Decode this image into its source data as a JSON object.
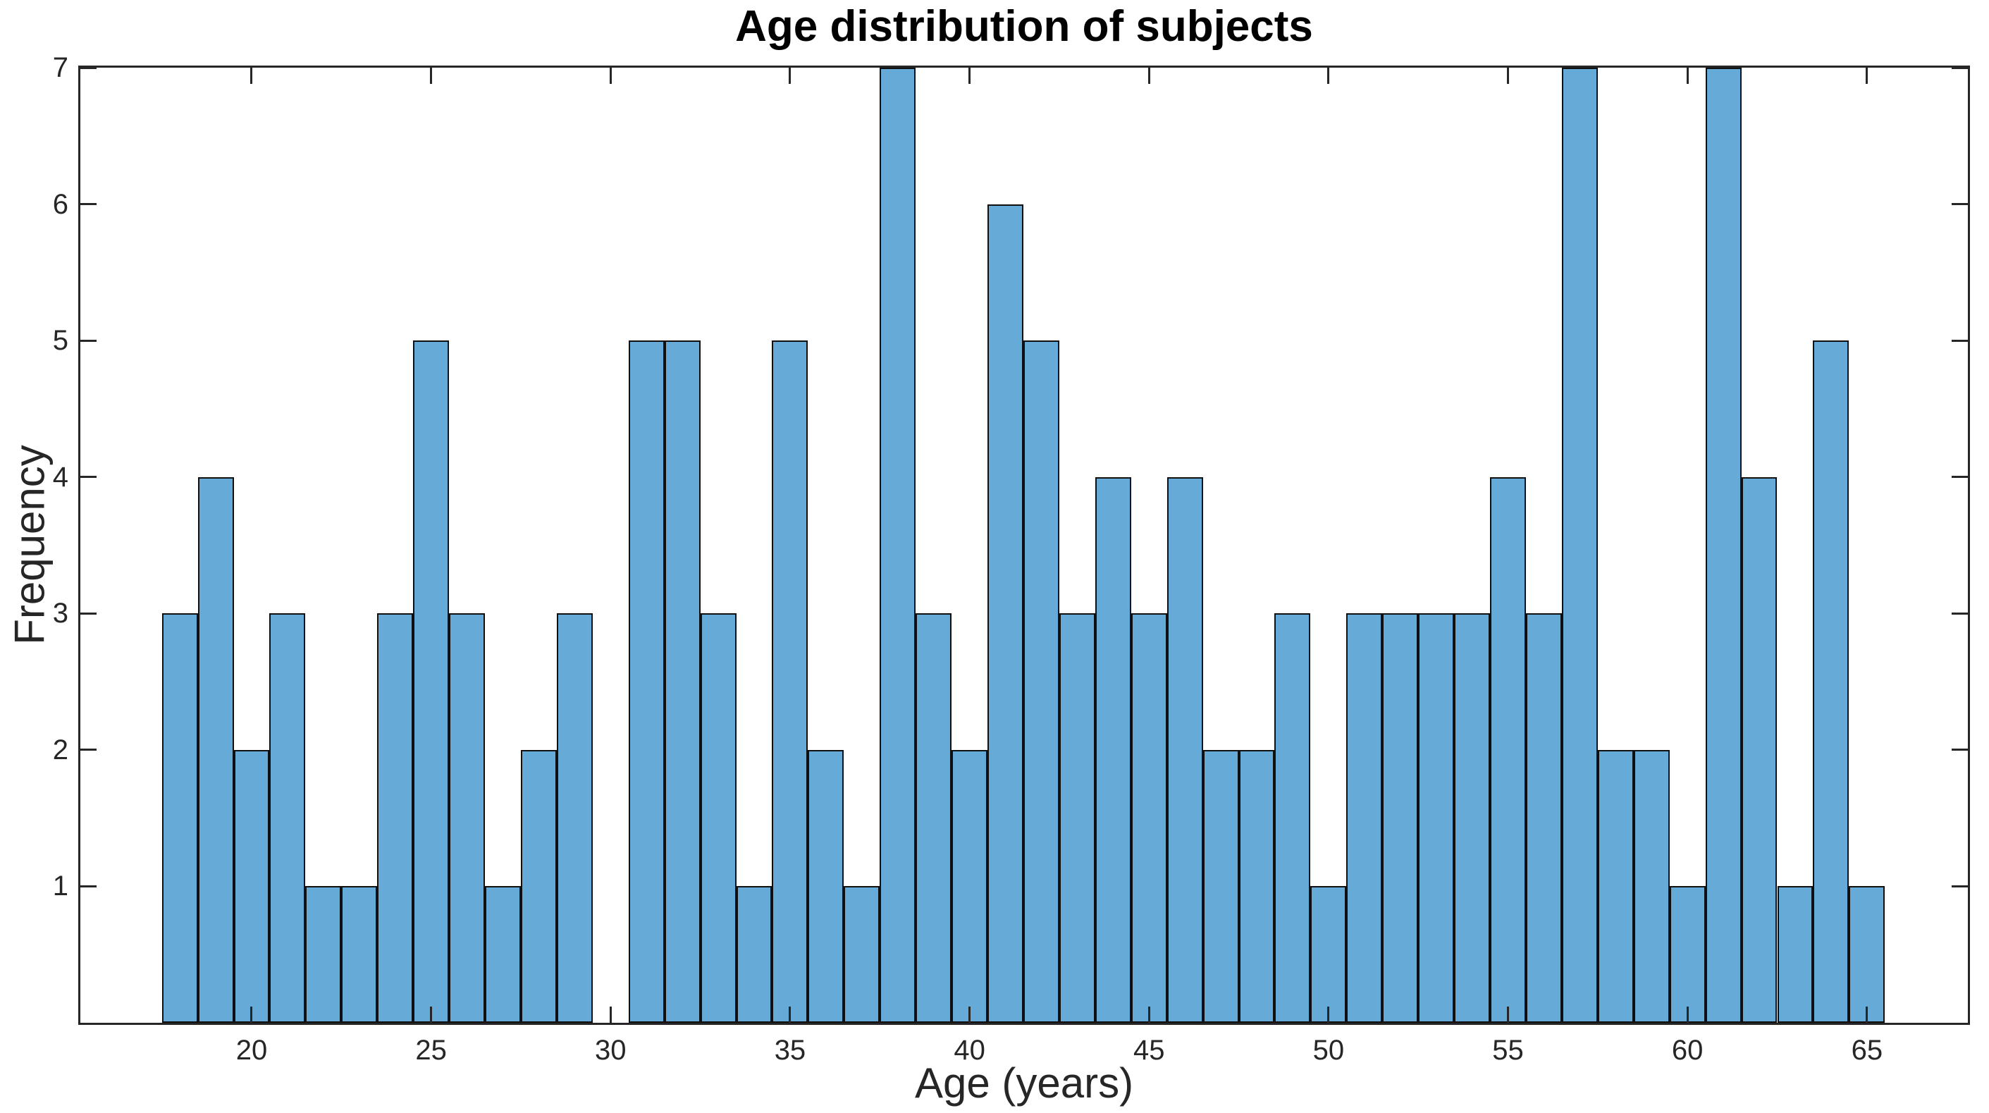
{
  "chart_data": {
    "type": "bar",
    "subtype": "histogram",
    "title": "Age distribution of subjects",
    "xlabel": "Age (years)",
    "ylabel": "Frequency",
    "bin_width": 1,
    "bin_centers": [
      18,
      19,
      20,
      21,
      22,
      23,
      24,
      25,
      26,
      27,
      28,
      29,
      30,
      31,
      32,
      33,
      34,
      35,
      36,
      37,
      38,
      39,
      40,
      41,
      42,
      43,
      44,
      45,
      46,
      47,
      48,
      49,
      50,
      51,
      52,
      53,
      54,
      55,
      56,
      57,
      58,
      59,
      60,
      61,
      62,
      63,
      64,
      65
    ],
    "counts": [
      3,
      4,
      2,
      3,
      1,
      1,
      3,
      5,
      3,
      1,
      2,
      3,
      0,
      5,
      5,
      3,
      1,
      5,
      2,
      1,
      7,
      3,
      2,
      6,
      5,
      3,
      4,
      3,
      4,
      2,
      2,
      3,
      1,
      3,
      3,
      3,
      3,
      4,
      3,
      7,
      2,
      2,
      1,
      7,
      4,
      1,
      5,
      1
    ],
    "x_ticks": [
      20,
      25,
      30,
      35,
      40,
      45,
      50,
      55,
      60,
      65
    ],
    "y_ticks": [
      1,
      2,
      3,
      4,
      5,
      6,
      7
    ],
    "xlim": [
      15.17,
      67.87
    ],
    "ylim": [
      0,
      7
    ],
    "grid": false,
    "legend": null,
    "bar_fill_color": "#66aad7",
    "bar_edge_color": "#101010",
    "axis_color": "#262626",
    "background_color": "#ffffff"
  }
}
